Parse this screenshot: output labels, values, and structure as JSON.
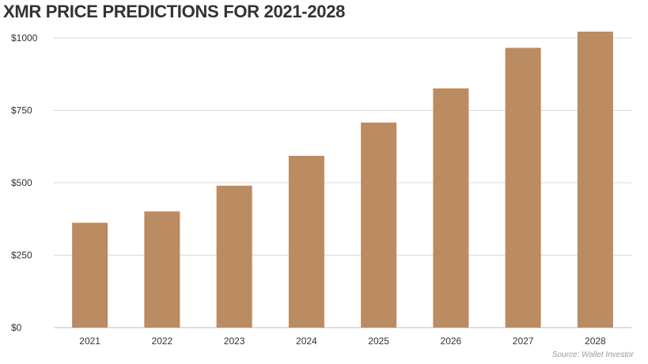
{
  "chart_data": {
    "type": "bar",
    "title": "XMR PRICE PREDICTIONS FOR 2021-2028",
    "xlabel": "",
    "ylabel": "",
    "categories": [
      "2021",
      "2022",
      "2023",
      "2024",
      "2025",
      "2026",
      "2027",
      "2028"
    ],
    "values": [
      362,
      401,
      490,
      593,
      708,
      826,
      966,
      1022
    ],
    "ylim": [
      0,
      1000
    ],
    "yticks": [
      0,
      250,
      500,
      750,
      1000
    ],
    "ytick_labels": [
      "$0",
      "$250",
      "$500",
      "$750",
      "$1000"
    ],
    "grid": true,
    "legend": "none",
    "bar_color": "#bb8b61"
  },
  "source": "Source: Wallet Investor"
}
